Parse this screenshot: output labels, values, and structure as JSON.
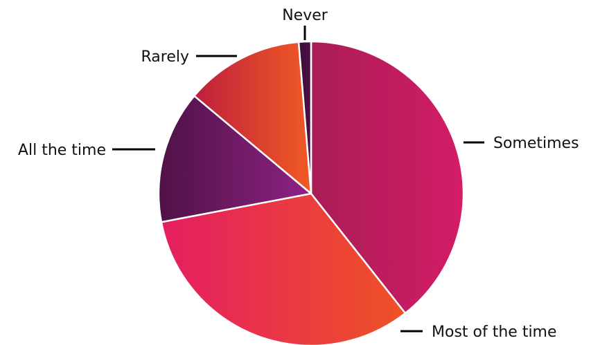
{
  "chart_data": {
    "type": "pie",
    "title": "",
    "slices": [
      {
        "label": "Sometimes",
        "value": 39.4,
        "color_start": "#A81D56",
        "color_end": "#D41C66"
      },
      {
        "label": "Most of the time",
        "value": 32.6,
        "color_start": "#E51E62",
        "color_end": "#EE5226"
      },
      {
        "label": "All the time",
        "value": 14.1,
        "color_start": "#4F1245",
        "color_end": "#8F2285"
      },
      {
        "label": "Rarely",
        "value": 12.6,
        "color_start": "#BE1F3C",
        "color_end": "#F05A24"
      },
      {
        "label": "Never",
        "value": 1.3,
        "color_start": "#3A0D3A",
        "color_end": "#4F1245"
      }
    ],
    "start_angle": "top",
    "direction": "clockwise",
    "legend": "none",
    "labels": "outside with leader lines"
  }
}
